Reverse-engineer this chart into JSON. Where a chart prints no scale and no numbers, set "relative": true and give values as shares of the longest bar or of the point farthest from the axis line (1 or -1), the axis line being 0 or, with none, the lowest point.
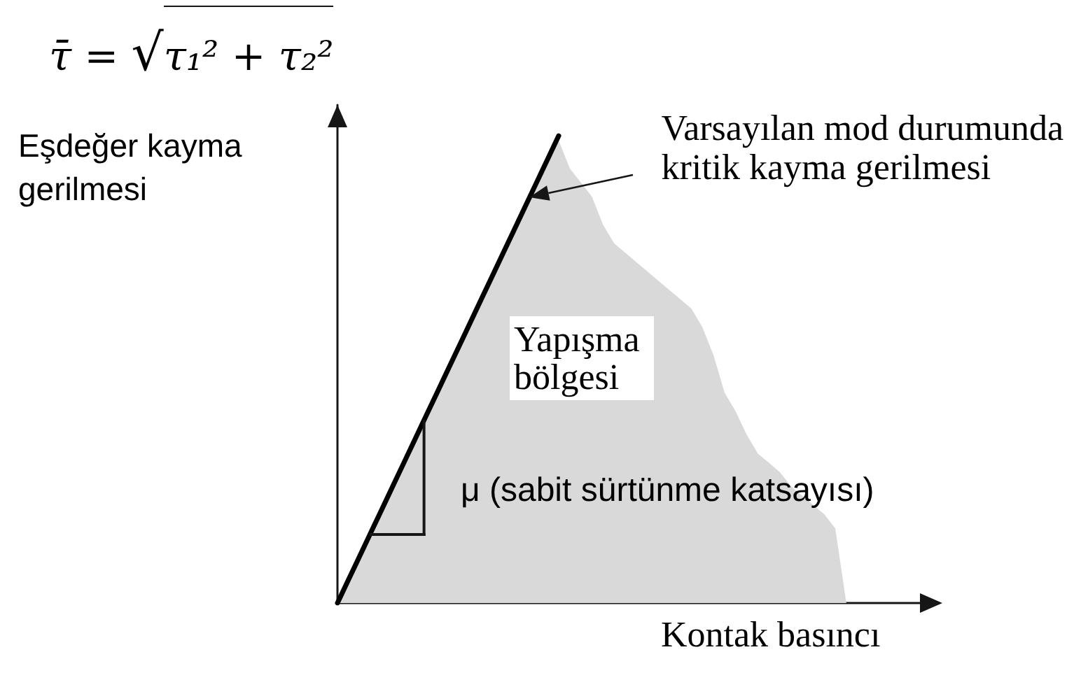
{
  "chart_data": {
    "type": "line",
    "relative": true,
    "xlabel": "Kontak basıncı",
    "ylabel": "Eşdeğer kayma gerilmesi",
    "categories": [
      null,
      null,
      null,
      null,
      null,
      null,
      null,
      null,
      null,
      null,
      null,
      null,
      null,
      null,
      null,
      null,
      null,
      null,
      null,
      null,
      null,
      null,
      null,
      null,
      null,
      null,
      null,
      null,
      null,
      null,
      null,
      null,
      null,
      null,
      null,
      null,
      null,
      null,
      null,
      null,
      null,
      null,
      null,
      null,
      null,
      null,
      null,
      null,
      null,
      null,
      null,
      null,
      null,
      null,
      null
    ],
    "series": [
      {
        "type": "line",
        "color": "#000000",
        "values": [
          0,
          0.05,
          0.1,
          0.15,
          0.2,
          0.25,
          0.3,
          0.35,
          0.4,
          0.45,
          0.5,
          0.55,
          0.6,
          0.65,
          0.7,
          0.75,
          0.8,
          0.85,
          0.9,
          0.95,
          1,
          null,
          null,
          null,
          null,
          null,
          null,
          null,
          null,
          null,
          null,
          null,
          null,
          null,
          null,
          null,
          null,
          null,
          null,
          null,
          null,
          null,
          null,
          null,
          null,
          null,
          null,
          null,
          null,
          null,
          null,
          null,
          null,
          null,
          null
        ]
      },
      {
        "type": "area",
        "name": "Yapışma bölgesi",
        "color": "#d9d9d9",
        "values": [
          0,
          0.05,
          0.1,
          0.15,
          0.2,
          0.25,
          0.3,
          0.35,
          0.4,
          0.45,
          0.5,
          0.55,
          0.6,
          0.65,
          0.7,
          0.75,
          0.8,
          0.85,
          0.9,
          0.95,
          0.99,
          0.93,
          0.9,
          0.87,
          0.81,
          0.77,
          0.75,
          0.73,
          0.71,
          0.69,
          0.67,
          0.65,
          0.63,
          0.59,
          0.53,
          0.45,
          0.41,
          0.36,
          0.32,
          0.3,
          0.28,
          0.25,
          0.23,
          0.21,
          0.19,
          0.16,
          0,
          null,
          null,
          null,
          null,
          null,
          null,
          null,
          null
        ]
      }
    ],
    "annotations": [
      "τ̄ = √τ₁² + τ₂²",
      "Varsayılan mod durumunda kritik kayma gerilmesi",
      "μ (sabit sürtünme katsayısı)"
    ]
  }
}
